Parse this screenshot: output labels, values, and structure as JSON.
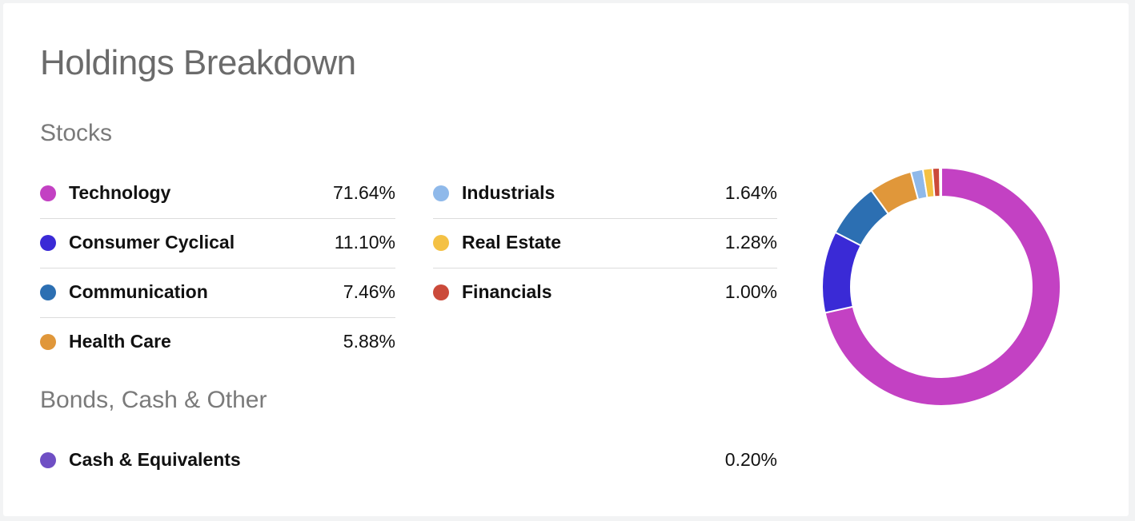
{
  "title": "Holdings Breakdown",
  "stocks_heading": "Stocks",
  "bonds_heading": "Bonds, Cash & Other",
  "chart_data": {
    "type": "pie",
    "donut": true,
    "categories": [
      "Technology",
      "Consumer Cyclical",
      "Communication",
      "Health Care",
      "Industrials",
      "Real Estate",
      "Financials",
      "Cash & Equivalents"
    ],
    "values": [
      71.64,
      11.1,
      7.46,
      5.88,
      1.64,
      1.28,
      1.0,
      0.2
    ],
    "value_labels": [
      "71.64%",
      "11.10%",
      "7.46%",
      "5.88%",
      "1.64%",
      "1.28%",
      "1.00%",
      "0.20%"
    ],
    "colors": [
      "#c341c3",
      "#3a2ad6",
      "#2c6fb2",
      "#e0973a",
      "#8fb9ea",
      "#f4c144",
      "#cb4a3a",
      "#6f4fc4"
    ],
    "legend": "left"
  }
}
